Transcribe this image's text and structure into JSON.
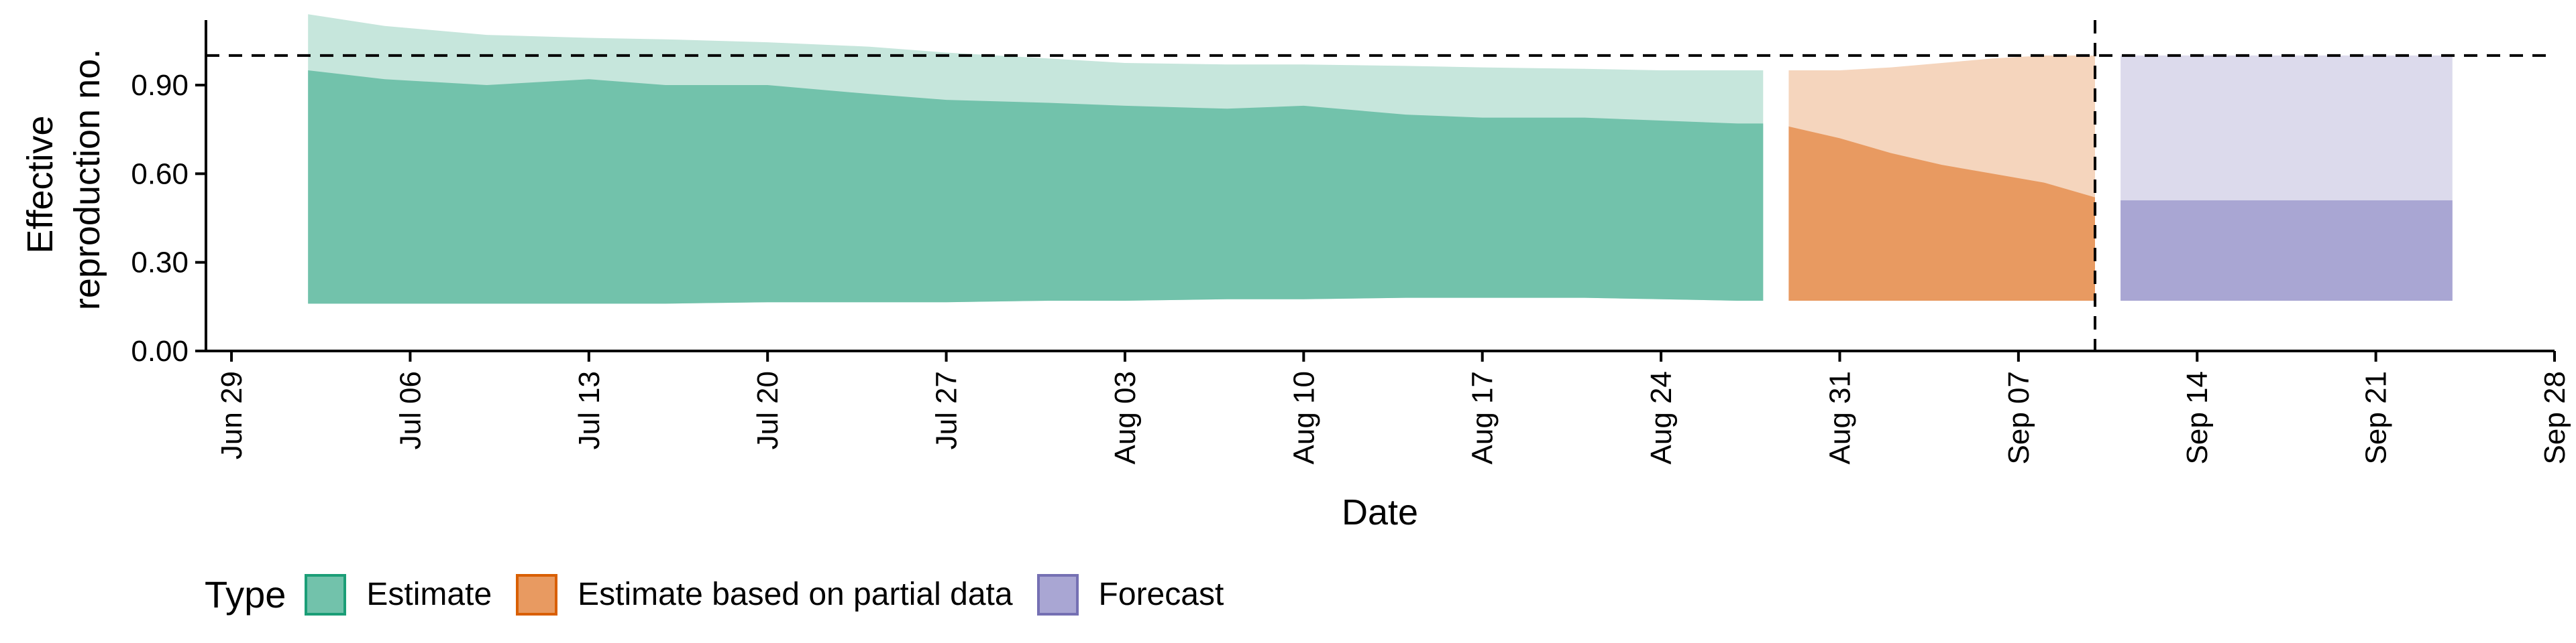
{
  "chart_data": {
    "type": "area",
    "xlabel": "Date",
    "ylabel": [
      "Effective",
      "reproduction no."
    ],
    "ylim": [
      0,
      1.12
    ],
    "yticks": [
      {
        "value": 0.0,
        "label": "0.00"
      },
      {
        "value": 0.3,
        "label": "0.30"
      },
      {
        "value": 0.6,
        "label": "0.60"
      },
      {
        "value": 0.9,
        "label": "0.90"
      }
    ],
    "xlim": [
      "2020-06-28",
      "2020-09-28"
    ],
    "xticks": [
      {
        "date": "2020-06-29",
        "label": "Jun 29"
      },
      {
        "date": "2020-07-06",
        "label": "Jul 06"
      },
      {
        "date": "2020-07-13",
        "label": "Jul 13"
      },
      {
        "date": "2020-07-20",
        "label": "Jul 20"
      },
      {
        "date": "2020-07-27",
        "label": "Jul 27"
      },
      {
        "date": "2020-08-03",
        "label": "Aug 03"
      },
      {
        "date": "2020-08-10",
        "label": "Aug 10"
      },
      {
        "date": "2020-08-17",
        "label": "Aug 17"
      },
      {
        "date": "2020-08-24",
        "label": "Aug 24"
      },
      {
        "date": "2020-08-31",
        "label": "Aug 31"
      },
      {
        "date": "2020-09-07",
        "label": "Sep 07"
      },
      {
        "date": "2020-09-14",
        "label": "Sep 14"
      },
      {
        "date": "2020-09-21",
        "label": "Sep 21"
      },
      {
        "date": "2020-09-28",
        "label": "Sep 28"
      }
    ],
    "reference_line_y": 1.0,
    "vertical_line_date": "2020-09-10",
    "series": [
      {
        "name": "Estimate",
        "color_inner": "#72c2ab",
        "color_outer": "#c6e6dc",
        "border": "#1b9e77",
        "dates": [
          "2020-07-02",
          "2020-07-05",
          "2020-07-09",
          "2020-07-13",
          "2020-07-16",
          "2020-07-20",
          "2020-07-24",
          "2020-07-27",
          "2020-07-31",
          "2020-08-03",
          "2020-08-07",
          "2020-08-10",
          "2020-08-14",
          "2020-08-17",
          "2020-08-21",
          "2020-08-24",
          "2020-08-27",
          "2020-08-28"
        ],
        "lower_outer": [
          0.16,
          0.16,
          0.16,
          0.16,
          0.16,
          0.165,
          0.165,
          0.165,
          0.17,
          0.17,
          0.175,
          0.175,
          0.18,
          0.18,
          0.18,
          0.175,
          0.17,
          0.17
        ],
        "lower_inner": [
          0.16,
          0.16,
          0.16,
          0.16,
          0.16,
          0.165,
          0.165,
          0.165,
          0.17,
          0.17,
          0.175,
          0.175,
          0.18,
          0.18,
          0.18,
          0.175,
          0.17,
          0.17
        ],
        "upper_inner": [
          0.95,
          0.92,
          0.9,
          0.92,
          0.9,
          0.9,
          0.87,
          0.85,
          0.84,
          0.83,
          0.82,
          0.83,
          0.8,
          0.79,
          0.79,
          0.78,
          0.77,
          0.77
        ],
        "upper_outer": [
          1.14,
          1.1,
          1.07,
          1.06,
          1.055,
          1.045,
          1.03,
          1.01,
          0.99,
          0.975,
          0.97,
          0.97,
          0.965,
          0.96,
          0.955,
          0.95,
          0.95,
          0.95
        ]
      },
      {
        "name": "Estimate based on partial data",
        "color_inner": "#e89a61",
        "color_outer": "#f5d5bd",
        "border": "#d95f02",
        "dates": [
          "2020-08-29",
          "2020-08-31",
          "2020-09-02",
          "2020-09-04",
          "2020-09-06",
          "2020-09-08",
          "2020-09-10"
        ],
        "lower_outer": [
          0.17,
          0.17,
          0.17,
          0.17,
          0.17,
          0.17,
          0.17
        ],
        "lower_inner": [
          0.17,
          0.17,
          0.17,
          0.17,
          0.17,
          0.17,
          0.17
        ],
        "upper_inner": [
          0.76,
          0.72,
          0.67,
          0.63,
          0.6,
          0.57,
          0.52
        ],
        "upper_outer": [
          0.95,
          0.95,
          0.96,
          0.975,
          0.99,
          1.0,
          1.0
        ]
      },
      {
        "name": "Forecast",
        "color_inner": "#a9a6d3",
        "color_outer": "#dcdaec",
        "border": "#7570b3",
        "dates": [
          "2020-09-11",
          "2020-09-24"
        ],
        "lower_outer": [
          0.17,
          0.17
        ],
        "lower_inner": [
          0.17,
          0.17
        ],
        "upper_inner": [
          0.51,
          0.51
        ],
        "upper_outer": [
          1.0,
          1.0
        ]
      }
    ],
    "legend": {
      "position": "bottom-left",
      "title": "Type",
      "items": [
        "Estimate",
        "Estimate based on partial data",
        "Forecast"
      ]
    }
  }
}
